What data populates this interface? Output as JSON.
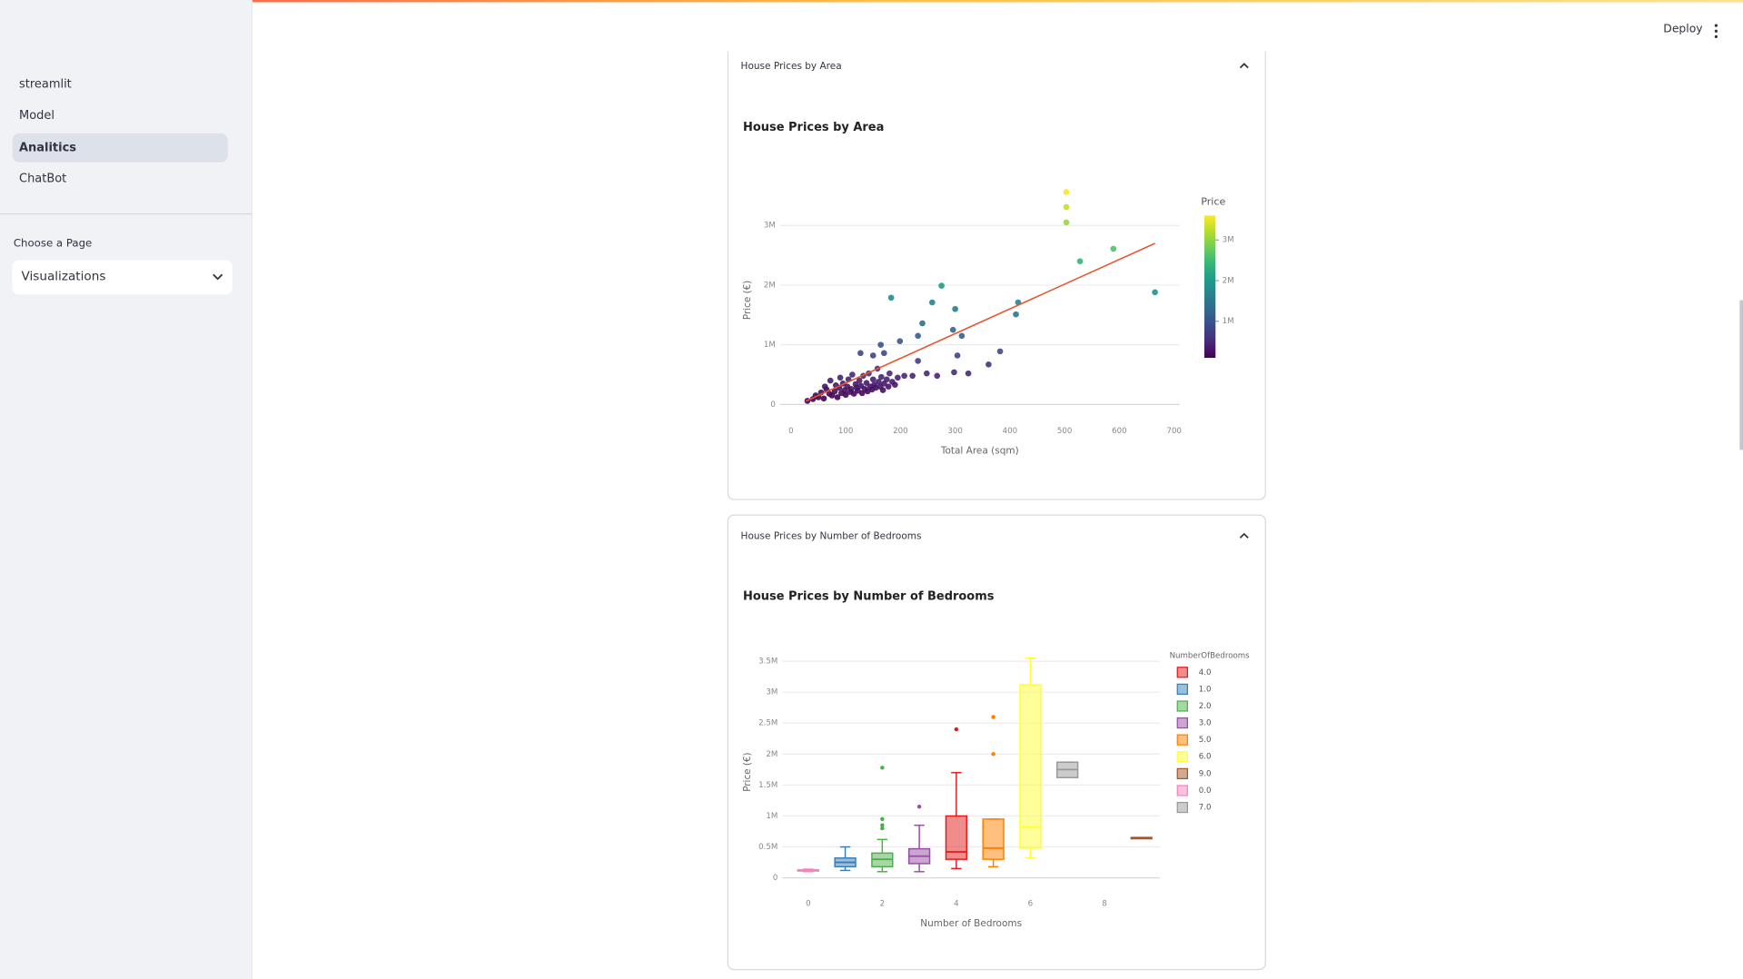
{
  "app": {
    "sidebar": {
      "nav": [
        "streamlit",
        "Model",
        "Analitics",
        "ChatBot"
      ],
      "active": 2,
      "select_label": "Choose a Page",
      "select_value": "Visualizations"
    },
    "toolbar": {
      "deploy": "Deploy"
    },
    "expanders": [
      "House Prices by Area",
      "House Prices by Number of Bedrooms"
    ]
  },
  "chart_data": [
    {
      "type": "scatter",
      "title": "House Prices by Area",
      "x_label": "Total Area (sqm)",
      "y_label": "Price (€)",
      "x": [
        30,
        40,
        45,
        50,
        55,
        60,
        62,
        65,
        70,
        72,
        75,
        80,
        82,
        85,
        88,
        90,
        92,
        95,
        98,
        100,
        103,
        105,
        108,
        110,
        112,
        115,
        118,
        120,
        122,
        125,
        128,
        130,
        132,
        135,
        138,
        140,
        142,
        145,
        148,
        150,
        152,
        155,
        158,
        160,
        163,
        165,
        168,
        170,
        175,
        178,
        180,
        185,
        190,
        195,
        503,
        503,
        503,
        528,
        589,
        665,
        415,
        411,
        275,
        258,
        300,
        183,
        240,
        232,
        199,
        312,
        296,
        382,
        361,
        324,
        298,
        267,
        304,
        232,
        248,
        222,
        164,
        170,
        127,
        150,
        207
      ],
      "values": [
        60000,
        90000,
        150000,
        120000,
        200000,
        100000,
        300000,
        250000,
        180000,
        400000,
        150000,
        220000,
        320000,
        120000,
        280000,
        450000,
        190000,
        350000,
        240000,
        160000,
        300000,
        420000,
        210000,
        260000,
        500000,
        180000,
        340000,
        280000,
        230000,
        400000,
        310000,
        190000,
        480000,
        260000,
        360000,
        220000,
        520000,
        300000,
        250000,
        420000,
        330000,
        280000,
        600000,
        380000,
        300000,
        460000,
        240000,
        350000,
        420000,
        300000,
        520000,
        380000,
        330000,
        450000,
        3560000,
        3310000,
        3050000,
        2400000,
        2610000,
        1880000,
        1710000,
        1510000,
        1990000,
        1710000,
        1600000,
        1790000,
        1360000,
        1150000,
        1060000,
        1150000,
        1250000,
        890000,
        670000,
        520000,
        540000,
        480000,
        820000,
        730000,
        520000,
        480000,
        1000000,
        860000,
        860000,
        820000,
        480000
      ],
      "colorscale": "viridis",
      "colorbar": {
        "title": "Price",
        "range": [
          100000,
          3600000
        ],
        "ticks": [
          {
            "value": 1000000,
            "label": "1M"
          },
          {
            "value": 2000000,
            "label": "2M"
          },
          {
            "value": 3000000,
            "label": "3M"
          }
        ]
      },
      "trendline": {
        "x": [
          27,
          665
        ],
        "values": [
          56000,
          2700000
        ],
        "color": "#e4572e"
      },
      "xlim": [
        -20,
        710
      ],
      "ylim": [
        -200000,
        3700000
      ],
      "xticks": [
        0,
        100,
        200,
        300,
        400,
        500,
        600,
        700
      ],
      "yticks": [
        0,
        {
          "value": 1000000,
          "label": "1M"
        },
        {
          "value": 2000000,
          "label": "2M"
        },
        {
          "value": 3000000,
          "label": "3M"
        }
      ],
      "grid": true
    },
    {
      "type": "box",
      "title": "House Prices by Number of Bedrooms",
      "x_label": "Number of Bedrooms",
      "y_label": "Price (€)",
      "legend_title": "NumberOfBedrooms",
      "legend": "right",
      "series": [
        {
          "name": "4.0",
          "color": "#e41a1c",
          "x": 4,
          "min": 150000,
          "q1": 300000,
          "median": 420000,
          "q3": 1000000,
          "max": 1700000,
          "outliers": [
            2400000
          ]
        },
        {
          "name": "1.0",
          "color": "#377eb8",
          "x": 1,
          "min": 120000,
          "q1": 180000,
          "median": 250000,
          "q3": 320000,
          "max": 500000,
          "outliers": []
        },
        {
          "name": "2.0",
          "color": "#4daf4a",
          "x": 2,
          "min": 100000,
          "q1": 180000,
          "median": 300000,
          "q3": 400000,
          "max": 620000,
          "outliers": [
            800000,
            850000,
            950000,
            1780000
          ]
        },
        {
          "name": "3.0",
          "color": "#984ea3",
          "x": 3,
          "min": 100000,
          "q1": 230000,
          "median": 350000,
          "q3": 470000,
          "max": 850000,
          "outliers": [
            1150000
          ]
        },
        {
          "name": "5.0",
          "color": "#ff7f00",
          "x": 5,
          "min": 180000,
          "q1": 300000,
          "median": 480000,
          "q3": 950000,
          "max": 950000,
          "outliers": [
            2000000,
            2600000
          ]
        },
        {
          "name": "6.0",
          "color": "#ffff33",
          "x": 6,
          "min": 320000,
          "q1": 480000,
          "median": 820000,
          "q3": 3120000,
          "max": 3550000,
          "outliers": []
        },
        {
          "name": "9.0",
          "color": "#a65628",
          "x": 9,
          "min": 650000,
          "q1": 650000,
          "median": 650000,
          "q3": 650000,
          "max": 650000,
          "outliers": []
        },
        {
          "name": "0.0",
          "color": "#f781bf",
          "x": 0,
          "min": 100000,
          "q1": 110000,
          "median": 120000,
          "q3": 130000,
          "max": 140000,
          "outliers": []
        },
        {
          "name": "7.0",
          "color": "#999999",
          "x": 7,
          "min": 1620000,
          "q1": 1620000,
          "median": 1750000,
          "q3": 1870000,
          "max": 1870000,
          "outliers": []
        }
      ],
      "xlim": [
        -0.7,
        9.5
      ],
      "ylim": [
        -180000,
        3600000
      ],
      "xticks": [
        0,
        2,
        4,
        6,
        8
      ],
      "yticks": [
        0,
        {
          "value": 500000,
          "label": "0.5M"
        },
        {
          "value": 1000000,
          "label": "1M"
        },
        {
          "value": 1500000,
          "label": "1.5M"
        },
        {
          "value": 2000000,
          "label": "2M"
        },
        {
          "value": 2500000,
          "label": "2.5M"
        },
        {
          "value": 3000000,
          "label": "3M"
        },
        {
          "value": 3500000,
          "label": "3.5M"
        }
      ],
      "grid": true
    }
  ]
}
